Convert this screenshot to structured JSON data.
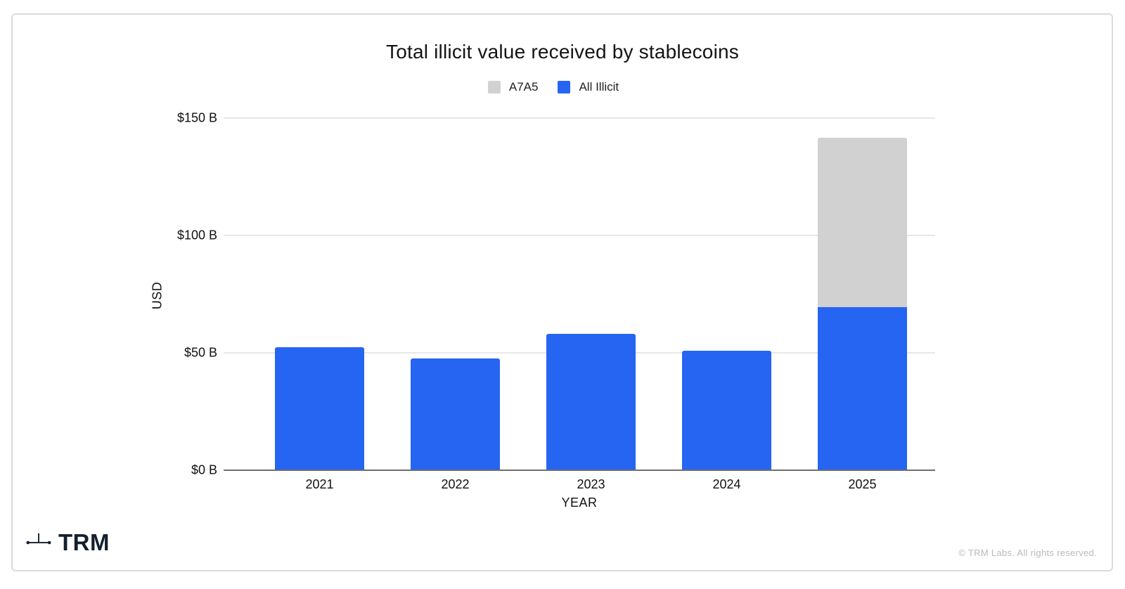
{
  "title": "Total illicit value received by stablecoins",
  "legend": [
    {
      "label": "A7A5",
      "color": "#d1d1d1"
    },
    {
      "label": "All Illicit",
      "color": "#2665f2"
    }
  ],
  "y_axis": {
    "title": "USD"
  },
  "x_axis": {
    "title": "YEAR"
  },
  "footer": {
    "logo_text": "TRM",
    "logo_icon": "trm-network-asterisk-icon",
    "copyright": "© TRM Labs. All rights reserved."
  },
  "colors": {
    "all_illicit_blue": "#2665f2",
    "a7a5_gray": "#d1d1d1",
    "gridline": "#e7e7e7",
    "axis": "#6f6f6f",
    "card_border": "#dbdbdb"
  },
  "chart_data": {
    "type": "bar",
    "stacked": true,
    "title": "Total illicit value received by stablecoins",
    "xlabel": "YEAR",
    "ylabel": "USD",
    "unit": "USD billions",
    "categories": [
      "2021",
      "2022",
      "2023",
      "2024",
      "2025"
    ],
    "series": [
      {
        "name": "All Illicit",
        "color": "#2665f2",
        "values": [
          52.5,
          47.5,
          58,
          51,
          69.5
        ]
      },
      {
        "name": "A7A5",
        "color": "#d1d1d1",
        "values": [
          0,
          0,
          0,
          0,
          72
        ]
      }
    ],
    "totals": [
      52.5,
      47.5,
      58,
      51,
      141.5
    ],
    "ylim": [
      0,
      150
    ],
    "yticks": [
      {
        "value": 0,
        "label": "$0 B"
      },
      {
        "value": 50,
        "label": "$50 B"
      },
      {
        "value": 100,
        "label": "$100 B"
      },
      {
        "value": 150,
        "label": "$150 B"
      }
    ],
    "grid": true,
    "legend_position": "top"
  }
}
